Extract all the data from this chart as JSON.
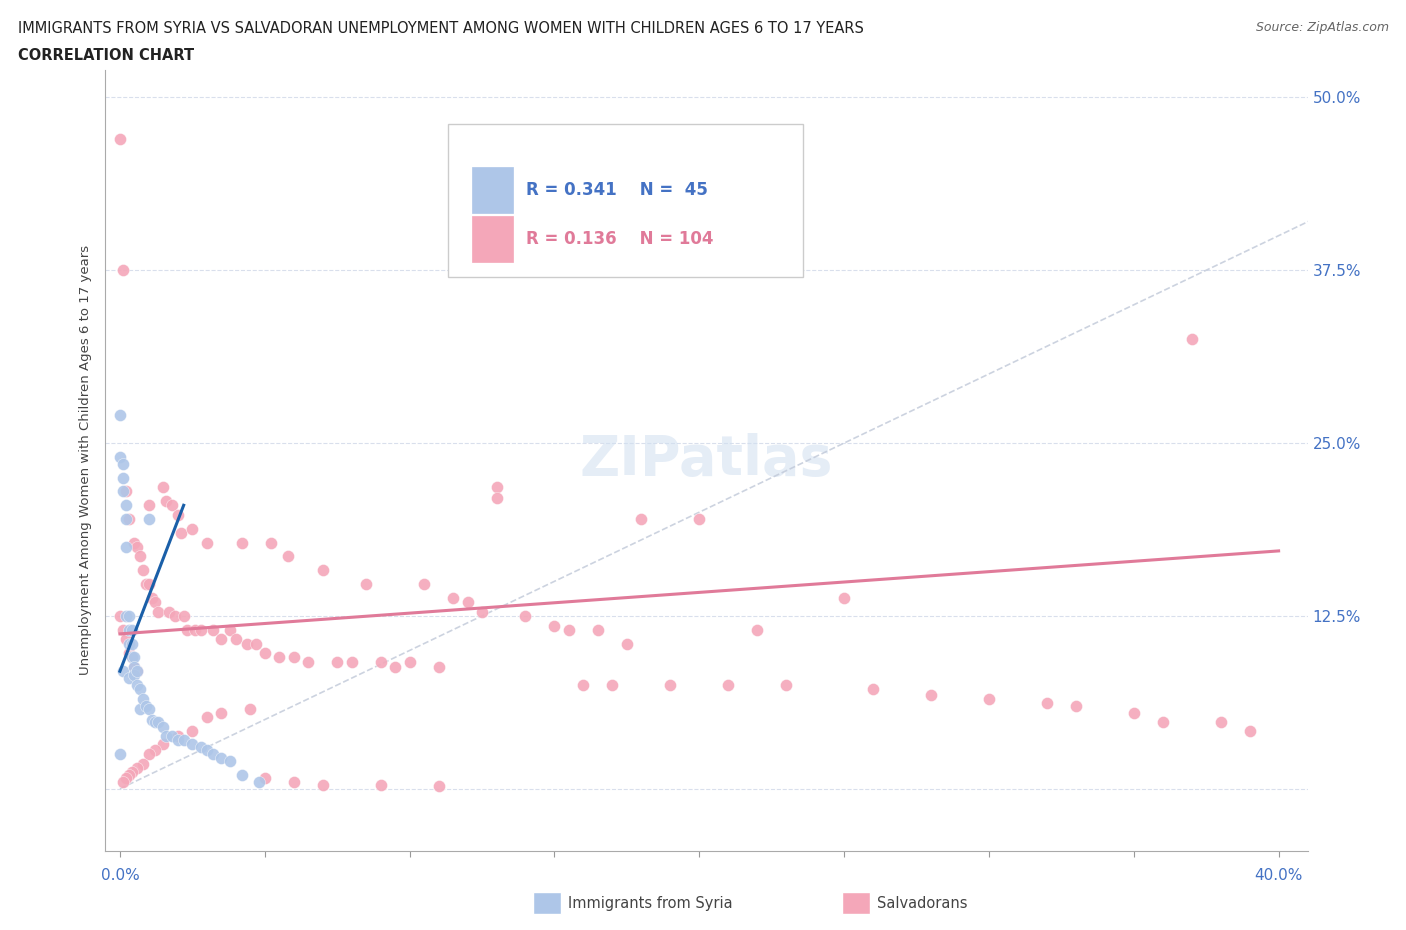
{
  "title_line1": "IMMIGRANTS FROM SYRIA VS SALVADORAN UNEMPLOYMENT AMONG WOMEN WITH CHILDREN AGES 6 TO 17 YEARS",
  "title_line2": "CORRELATION CHART",
  "source": "Source: ZipAtlas.com",
  "ylabel": "Unemployment Among Women with Children Ages 6 to 17 years",
  "color_syria": "#aec6e8",
  "color_salvador": "#f4a7b9",
  "color_syria_line": "#1a5fa8",
  "color_salvador_line": "#e07a99",
  "color_diagonal": "#c0c8d8",
  "watermark": "ZIPatlas",
  "xlim": [
    -0.005,
    0.41
  ],
  "ylim": [
    -0.045,
    0.52
  ],
  "y_ticks": [
    0.0,
    0.125,
    0.25,
    0.375,
    0.5
  ],
  "y_tick_labels": [
    "",
    "12.5%",
    "25.0%",
    "37.5%",
    "50.0%"
  ],
  "x_ticks": [
    0.0,
    0.05,
    0.1,
    0.15,
    0.2,
    0.25,
    0.3,
    0.35,
    0.4
  ],
  "syria_x": [
    0.0,
    0.0,
    0.0,
    0.001,
    0.001,
    0.001,
    0.001,
    0.002,
    0.002,
    0.002,
    0.002,
    0.003,
    0.003,
    0.003,
    0.003,
    0.004,
    0.004,
    0.004,
    0.005,
    0.005,
    0.005,
    0.006,
    0.006,
    0.007,
    0.007,
    0.008,
    0.009,
    0.01,
    0.01,
    0.011,
    0.012,
    0.013,
    0.015,
    0.016,
    0.018,
    0.02,
    0.022,
    0.025,
    0.028,
    0.03,
    0.032,
    0.035,
    0.038,
    0.042,
    0.048
  ],
  "syria_y": [
    0.27,
    0.24,
    0.025,
    0.235,
    0.225,
    0.215,
    0.085,
    0.205,
    0.195,
    0.175,
    0.125,
    0.125,
    0.115,
    0.105,
    0.08,
    0.115,
    0.105,
    0.095,
    0.095,
    0.088,
    0.082,
    0.085,
    0.075,
    0.072,
    0.058,
    0.065,
    0.06,
    0.195,
    0.058,
    0.05,
    0.048,
    0.048,
    0.045,
    0.038,
    0.038,
    0.035,
    0.035,
    0.032,
    0.03,
    0.028,
    0.025,
    0.022,
    0.02,
    0.01,
    0.005
  ],
  "salvador_x": [
    0.0,
    0.0,
    0.001,
    0.001,
    0.002,
    0.002,
    0.003,
    0.003,
    0.004,
    0.005,
    0.005,
    0.006,
    0.006,
    0.007,
    0.008,
    0.009,
    0.01,
    0.01,
    0.011,
    0.012,
    0.013,
    0.015,
    0.016,
    0.017,
    0.018,
    0.019,
    0.02,
    0.021,
    0.022,
    0.023,
    0.025,
    0.026,
    0.028,
    0.03,
    0.032,
    0.035,
    0.038,
    0.04,
    0.042,
    0.044,
    0.047,
    0.05,
    0.052,
    0.055,
    0.058,
    0.06,
    0.065,
    0.07,
    0.075,
    0.08,
    0.085,
    0.09,
    0.095,
    0.1,
    0.105,
    0.11,
    0.115,
    0.12,
    0.125,
    0.13,
    0.14,
    0.15,
    0.155,
    0.16,
    0.165,
    0.17,
    0.175,
    0.18,
    0.19,
    0.2,
    0.21,
    0.22,
    0.23,
    0.25,
    0.26,
    0.28,
    0.3,
    0.32,
    0.33,
    0.35,
    0.36,
    0.37,
    0.38,
    0.39,
    0.045,
    0.035,
    0.03,
    0.025,
    0.02,
    0.015,
    0.012,
    0.01,
    0.008,
    0.006,
    0.004,
    0.003,
    0.002,
    0.001,
    0.05,
    0.06,
    0.07,
    0.09,
    0.11,
    0.13
  ],
  "salvador_y": [
    0.47,
    0.125,
    0.375,
    0.115,
    0.215,
    0.108,
    0.195,
    0.098,
    0.095,
    0.178,
    0.088,
    0.175,
    0.085,
    0.168,
    0.158,
    0.148,
    0.205,
    0.148,
    0.138,
    0.135,
    0.128,
    0.218,
    0.208,
    0.128,
    0.205,
    0.125,
    0.198,
    0.185,
    0.125,
    0.115,
    0.188,
    0.115,
    0.115,
    0.178,
    0.115,
    0.108,
    0.115,
    0.108,
    0.178,
    0.105,
    0.105,
    0.098,
    0.178,
    0.095,
    0.168,
    0.095,
    0.092,
    0.158,
    0.092,
    0.092,
    0.148,
    0.092,
    0.088,
    0.092,
    0.148,
    0.088,
    0.138,
    0.135,
    0.128,
    0.218,
    0.125,
    0.118,
    0.115,
    0.075,
    0.115,
    0.075,
    0.105,
    0.195,
    0.075,
    0.195,
    0.075,
    0.115,
    0.075,
    0.138,
    0.072,
    0.068,
    0.065,
    0.062,
    0.06,
    0.055,
    0.048,
    0.325,
    0.048,
    0.042,
    0.058,
    0.055,
    0.052,
    0.042,
    0.038,
    0.032,
    0.028,
    0.025,
    0.018,
    0.015,
    0.012,
    0.01,
    0.008,
    0.005,
    0.008,
    0.005,
    0.003,
    0.003,
    0.002,
    0.21
  ]
}
